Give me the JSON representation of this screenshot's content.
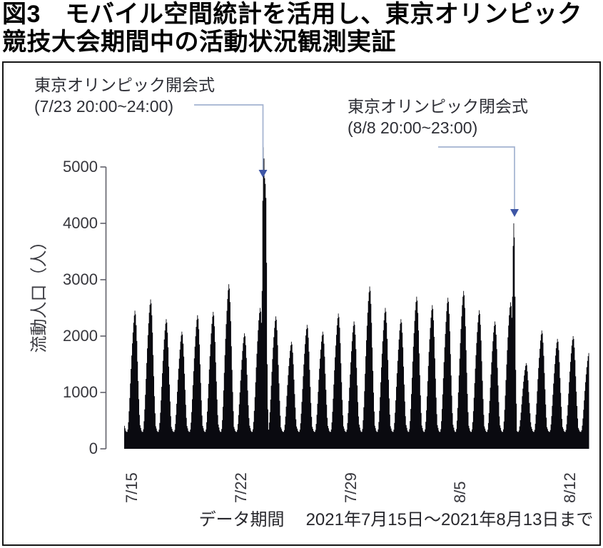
{
  "figure": {
    "title_line1": "図3　モバイル空間統計を活用し、東京オリンピック",
    "title_line2": "競技大会期間中の活動状況観測実証"
  },
  "chart_data": {
    "type": "area",
    "title": "図3 モバイル空間統計を活用し、東京オリンピック競技大会期間中の活動状況観測実証",
    "ylabel": "流動人口（人）",
    "xlabel": "",
    "ylim": [
      0,
      5000
    ],
    "grid": false,
    "y_ticks": [
      0,
      1000,
      2000,
      3000,
      4000,
      5000
    ],
    "y_tick_labels": [
      "0",
      "1000",
      "2000",
      "3000",
      "4000",
      "5000"
    ],
    "x_tick_labels": [
      "7/15",
      "7/22",
      "7/29",
      "8/5",
      "8/12"
    ],
    "x_tick_days": [
      0,
      7,
      14,
      21,
      28
    ],
    "caption_label": "データ期間",
    "caption_value": "2021年7月15日～2021年8月13日まで",
    "night_min": 300,
    "hourly_profile": [
      0.05,
      0.03,
      0.01,
      0,
      0,
      0.02,
      0.08,
      0.17,
      0.28,
      0.4,
      0.52,
      0.63,
      0.73,
      0.82,
      0.9,
      0.96,
      1,
      0.97,
      0.88,
      0.75,
      0.58,
      0.42,
      0.27,
      0.14
    ],
    "daily_peaks": [
      {
        "date": "7/15",
        "peak": 2450
      },
      {
        "date": "7/16",
        "peak": 2650
      },
      {
        "date": "7/17",
        "peak": 2300
      },
      {
        "date": "7/18",
        "peak": 2080
      },
      {
        "date": "7/19",
        "peak": 2370
      },
      {
        "date": "7/20",
        "peak": 2430
      },
      {
        "date": "7/21",
        "peak": 2920
      },
      {
        "date": "7/22",
        "peak": 2050
      },
      {
        "date": "7/23",
        "peak": 2500
      },
      {
        "date": "7/24",
        "peak": 2350
      },
      {
        "date": "7/25",
        "peak": 1900
      },
      {
        "date": "7/26",
        "peak": 2200
      },
      {
        "date": "7/27",
        "peak": 2080
      },
      {
        "date": "7/28",
        "peak": 2400
      },
      {
        "date": "7/29",
        "peak": 2260
      },
      {
        "date": "7/30",
        "peak": 2880
      },
      {
        "date": "7/31",
        "peak": 2500
      },
      {
        "date": "8/1",
        "peak": 2300
      },
      {
        "date": "8/2",
        "peak": 2700
      },
      {
        "date": "8/3",
        "peak": 2550
      },
      {
        "date": "8/4",
        "peak": 2680
      },
      {
        "date": "8/5",
        "peak": 2800
      },
      {
        "date": "8/6",
        "peak": 2460
      },
      {
        "date": "8/7",
        "peak": 2260
      },
      {
        "date": "8/8",
        "peak": 2600
      },
      {
        "date": "8/9",
        "peak": 1520
      },
      {
        "date": "8/10",
        "peak": 2100
      },
      {
        "date": "8/11",
        "peak": 1950
      },
      {
        "date": "8/12",
        "peak": 2000
      },
      {
        "date": "8/13",
        "peak": 1700,
        "cut_hour": 17
      }
    ],
    "event_overrides": [
      {
        "date": "7/23",
        "hours": {
          "19": 2800,
          "20": 4400,
          "21": 5350,
          "22": 5150,
          "23": 4800
        }
      },
      {
        "date": "7/24",
        "hours": {
          "0": 4700,
          "1": 4450,
          "2": 3300,
          "3": 1500,
          "4": 700
        }
      },
      {
        "date": "8/8",
        "hours": {
          "19": 2700,
          "20": 3600,
          "21": 4000,
          "22": 3750,
          "23": 2700
        }
      },
      {
        "date": "8/9",
        "hours": {
          "0": 1400,
          "1": 800
        }
      }
    ],
    "annotations": [
      {
        "line1": "東京オリンピック開会式",
        "line2": "(7/23 20:00~24:00)"
      },
      {
        "line1": "東京オリンピック閉会式",
        "line2": "(8/8 20:00~23:00)"
      }
    ]
  },
  "colors": {
    "series_fill": "#0a0a10",
    "connector": "#a3b2d0",
    "arrowhead": "#3e56a6",
    "axis": "#60606a",
    "title_text": "#000000"
  }
}
